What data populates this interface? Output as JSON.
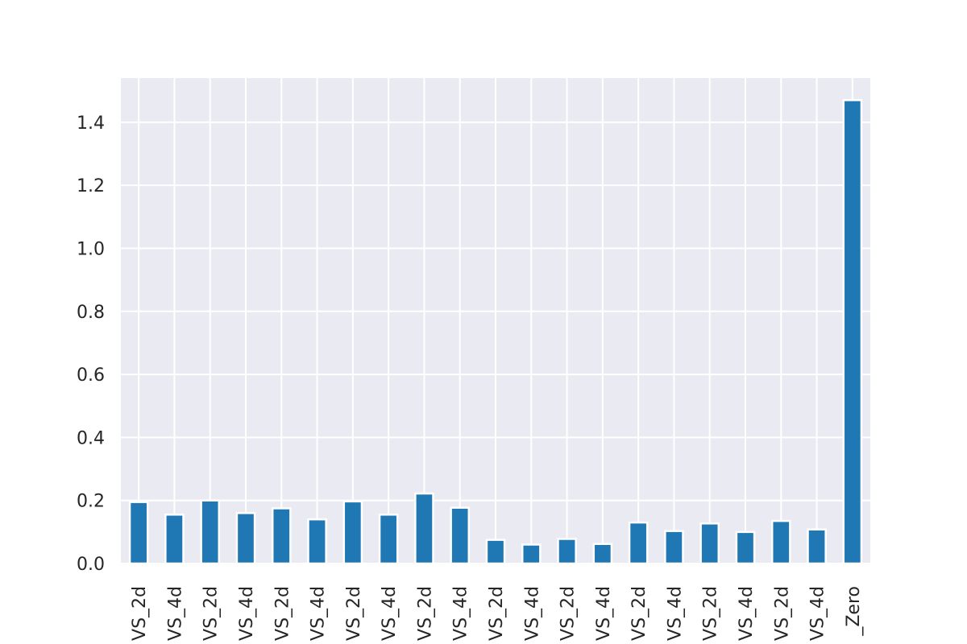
{
  "chart_data": {
    "type": "bar",
    "title": "",
    "xlabel": "",
    "ylabel": "",
    "ylim": [
      0,
      1.54
    ],
    "yticks": [
      0.0,
      0.2,
      0.4,
      0.6,
      0.8,
      1.0,
      1.2,
      1.4
    ],
    "ytick_labels": [
      "0.0",
      "0.2",
      "0.4",
      "0.6",
      "0.8",
      "1.0",
      "1.2",
      "1.4"
    ],
    "grid": true,
    "categories": [
      "VS_2d",
      "VS_4d",
      "VS_2d",
      "VS_4d",
      "VS_2d",
      "VS_4d",
      "VS_2d",
      "VS_4d",
      "VS_2d",
      "VS_4d",
      "VS_2d",
      "VS_4d",
      "VS_2d",
      "VS_4d",
      "VS_2d",
      "VS_4d",
      "VS_2d",
      "VS_4d",
      "VS_2d",
      "VS_4d",
      "_Zero"
    ],
    "values": [
      0.195,
      0.155,
      0.2,
      0.16,
      0.175,
      0.14,
      0.197,
      0.155,
      0.222,
      0.177,
      0.075,
      0.06,
      0.078,
      0.062,
      0.13,
      0.103,
      0.127,
      0.1,
      0.135,
      0.108,
      1.47
    ],
    "colors": {
      "bar": "#1f77b4",
      "plot_bg": "#eaeaf2",
      "grid": "#ffffff",
      "text": "#262626"
    }
  }
}
